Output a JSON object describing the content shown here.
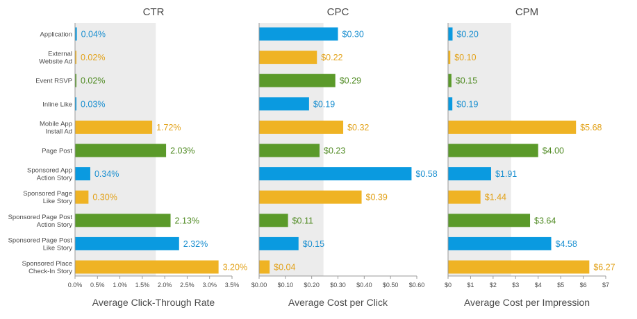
{
  "chart_data": {
    "type": "bar",
    "orientation": "horizontal",
    "categories": [
      "Application",
      "External Website Ad",
      "Event RSVP",
      "Inline Like",
      "Mobile App Install Ad",
      "Page Post",
      "Sponsored App Action Story",
      "Sponsored Page Like Story",
      "Sponsored Page Post Action Story",
      "Sponsored Page Post Like Story",
      "Sponsored Place Check-In Story"
    ],
    "category_lines": [
      [
        "Application"
      ],
      [
        "External",
        "Website Ad"
      ],
      [
        "Event RSVP"
      ],
      [
        "Inline Like"
      ],
      [
        "Mobile App",
        "Install Ad"
      ],
      [
        "Page Post"
      ],
      [
        "Sponsored App",
        "Action Story"
      ],
      [
        "Sponsored Page",
        "Like Story"
      ],
      [
        "Sponsored Page Post",
        "Action Story"
      ],
      [
        "Sponsored Page Post",
        "Like Story"
      ],
      [
        "Sponsored Place",
        "Check-In Story"
      ]
    ],
    "bar_colors": [
      "#0a9ae0",
      "#efb324",
      "#5b9a2a",
      "#0a9ae0",
      "#efb324",
      "#5b9a2a",
      "#0a9ae0",
      "#efb324",
      "#5b9a2a",
      "#0a9ae0",
      "#efb324"
    ],
    "colors": {
      "blue": "#0a9ae0",
      "orange": "#efb324",
      "green": "#5b9a2a",
      "label_blue": "#1a8fd0",
      "label_orange": "#e2a21a",
      "label_green": "#4f8a22",
      "shade": "#ececec",
      "axis": "#9a9a9a",
      "text": "#4a4a4a"
    },
    "panels": [
      {
        "title": "CTR",
        "xlabel": "Average Click-Through Rate",
        "xlim": [
          0,
          3.5
        ],
        "ticks": [
          "0.0%",
          "0.5%",
          "1.0%",
          "1.5%",
          "2.0%",
          "2.5%",
          "3.0%",
          "3.5%"
        ],
        "tick_values": [
          0,
          0.5,
          1.0,
          1.5,
          2.0,
          2.5,
          3.0,
          3.5
        ],
        "shaded_range": [
          0,
          1.8
        ],
        "values": [
          0.04,
          0.02,
          0.02,
          0.03,
          1.72,
          2.03,
          0.34,
          0.3,
          2.13,
          2.32,
          3.2
        ],
        "value_labels": [
          "0.04%",
          "0.02%",
          "0.02%",
          "0.03%",
          "1.72%",
          "2.03%",
          "0.34%",
          "0.30%",
          "2.13%",
          "2.32%",
          "3.20%"
        ]
      },
      {
        "title": "CPC",
        "xlabel": "Average Cost per Click",
        "xlim": [
          0,
          0.6
        ],
        "ticks": [
          "$0.00",
          "$0.10",
          "$0.20",
          "$0.30",
          "$0.40",
          "$0.50",
          "$0.60"
        ],
        "tick_values": [
          0,
          0.1,
          0.2,
          0.3,
          0.4,
          0.5,
          0.6
        ],
        "shaded_range": [
          0,
          0.245
        ],
        "values": [
          0.3,
          0.22,
          0.29,
          0.19,
          0.32,
          0.23,
          0.58,
          0.39,
          0.11,
          0.15,
          0.04
        ],
        "value_labels": [
          "$0.30",
          "$0.22",
          "$0.29",
          "$0.19",
          "$0.32",
          "$0.23",
          "$0.58",
          "$0.39",
          "$0.11",
          "$0.15",
          "$0.04"
        ]
      },
      {
        "title": "CPM",
        "xlabel": "Average Cost per Impression",
        "xlim": [
          0,
          7
        ],
        "ticks": [
          "$0",
          "$1",
          "$2",
          "$3",
          "$4",
          "$5",
          "$6",
          "$7"
        ],
        "tick_values": [
          0,
          1,
          2,
          3,
          4,
          5,
          6,
          7
        ],
        "shaded_range": [
          0,
          2.8
        ],
        "values": [
          0.2,
          0.1,
          0.15,
          0.19,
          5.68,
          4.0,
          1.91,
          1.44,
          3.64,
          4.58,
          6.27
        ],
        "value_labels": [
          "$0.20",
          "$0.10",
          "$0.15",
          "$0.19",
          "$5.68",
          "$4.00",
          "$1.91",
          "$1.44",
          "$3.64",
          "$4.58",
          "$6.27"
        ]
      }
    ]
  }
}
